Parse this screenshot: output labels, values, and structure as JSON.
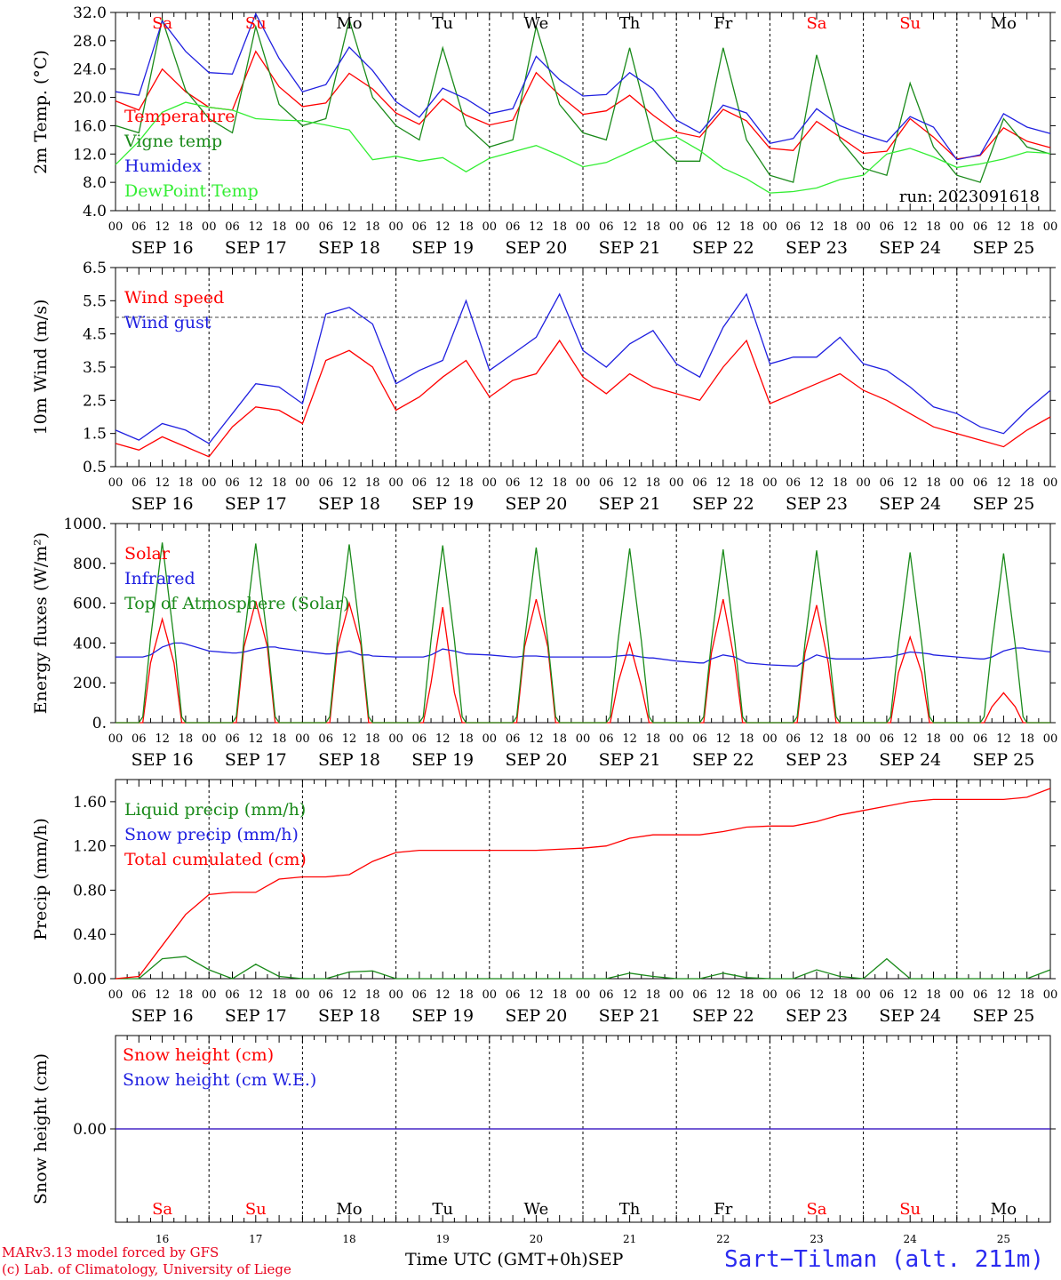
{
  "chart_data": [
    {
      "type": "line",
      "ylabel": "2m Temp. (°C)",
      "ylim": [
        4,
        32
      ],
      "yticks": [
        "32.0",
        "28.0",
        "24.0",
        "20.0",
        "16.0",
        "12.0",
        "8.0",
        "4.0"
      ],
      "dashed_levels": [],
      "run_label": "run: 2023091618",
      "x_hours": [
        0,
        6,
        12,
        18,
        24,
        30,
        36,
        42,
        48,
        54,
        60,
        66,
        72,
        78,
        84,
        90,
        96,
        102,
        108,
        114,
        120,
        126,
        132,
        138,
        144,
        150,
        156,
        162,
        168,
        174,
        180,
        186,
        192,
        198,
        204,
        210,
        216,
        222,
        228,
        234,
        240
      ],
      "series": [
        {
          "name": "Temperature",
          "color": "#ff0000",
          "values": [
            19.5,
            18.2,
            24,
            20.8,
            18.6,
            18.2,
            26.5,
            21.5,
            18.7,
            19.2,
            23.4,
            21.2,
            17.8,
            16.2,
            19.8,
            17.5,
            16.1,
            16.8,
            23.5,
            20.3,
            17.6,
            18.1,
            20.3,
            17.5,
            15.1,
            14.4,
            18.3,
            16.7,
            12.8,
            12.5,
            16.6,
            14.4,
            12.1,
            12.4,
            17,
            14.4,
            11.3,
            11.8,
            15.7,
            13.8,
            12.9
          ]
        },
        {
          "name": "Vigne temp",
          "color": "#1a8a1a",
          "values": [
            16,
            15,
            31,
            21,
            17,
            15,
            30,
            19,
            16,
            17,
            31,
            20,
            16,
            14,
            27,
            16,
            13,
            14,
            30,
            19,
            15,
            14,
            27,
            14,
            11,
            11,
            27,
            14,
            9,
            8,
            26,
            14,
            10,
            9,
            22,
            13,
            9,
            8,
            17,
            13,
            12
          ]
        },
        {
          "name": "Humidex",
          "color": "#2020e0",
          "values": [
            20.8,
            20.3,
            30.8,
            26.5,
            23.5,
            23.3,
            31.8,
            25.5,
            20.8,
            21.8,
            27.1,
            23.8,
            19.4,
            17.2,
            21.3,
            19.8,
            17.7,
            18.4,
            25.8,
            22.5,
            20.2,
            20.4,
            23.5,
            21.2,
            16.8,
            15,
            18.9,
            17.8,
            13.5,
            14.2,
            18.4,
            16,
            14.7,
            13.7,
            17.3,
            15.8,
            11.2,
            11.9,
            17.7,
            15.8,
            14.9
          ]
        },
        {
          "name": "DewPoint Temp",
          "color": "#33ee33",
          "values": [
            10.5,
            13.8,
            17.9,
            19.3,
            18.6,
            18.2,
            17,
            16.8,
            16.7,
            16.1,
            15.4,
            11.2,
            11.7,
            11,
            11.5,
            9.5,
            11.4,
            12.3,
            13.2,
            11.8,
            10.2,
            10.8,
            12.3,
            13.8,
            14.4,
            12.5,
            10,
            8.5,
            6.5,
            6.7,
            7.2,
            8.4,
            9,
            12,
            12.8,
            11.6,
            10.1,
            10.6,
            11.3,
            12.3,
            12.1
          ]
        }
      ]
    },
    {
      "type": "line",
      "ylabel": "10m Wind (m/s)",
      "ylim": [
        0.5,
        6.5
      ],
      "yticks": [
        "6.5",
        "5.5",
        "4.5",
        "3.5",
        "2.5",
        "1.5",
        "0.5"
      ],
      "dashed_levels": [
        5
      ],
      "x_hours": [
        0,
        6,
        12,
        18,
        24,
        30,
        36,
        42,
        48,
        54,
        60,
        66,
        72,
        78,
        84,
        90,
        96,
        102,
        108,
        114,
        120,
        126,
        132,
        138,
        144,
        150,
        156,
        162,
        168,
        174,
        180,
        186,
        192,
        198,
        204,
        210,
        216,
        222,
        228,
        234,
        240
      ],
      "series": [
        {
          "name": "Wind speed",
          "color": "#ff0000",
          "values": [
            1.2,
            1,
            1.4,
            1.1,
            0.8,
            1.7,
            2.3,
            2.2,
            1.8,
            3.7,
            4,
            3.5,
            2.2,
            2.6,
            3.2,
            3.7,
            2.6,
            3.1,
            3.3,
            4.3,
            3.2,
            2.7,
            3.3,
            2.9,
            2.7,
            2.5,
            3.5,
            4.3,
            2.4,
            2.7,
            3,
            3.3,
            2.8,
            2.5,
            2.1,
            1.7,
            1.5,
            1.3,
            1.1,
            1.6,
            2
          ]
        },
        {
          "name": "Wind gust",
          "color": "#2020e0",
          "values": [
            1.6,
            1.3,
            1.8,
            1.6,
            1.2,
            2.1,
            3,
            2.9,
            2.4,
            5.1,
            5.3,
            4.8,
            3,
            3.4,
            3.7,
            5.5,
            3.4,
            3.9,
            4.4,
            5.7,
            4,
            3.5,
            4.2,
            4.6,
            3.6,
            3.2,
            4.7,
            5.7,
            3.6,
            3.8,
            3.8,
            4.4,
            3.6,
            3.4,
            2.9,
            2.3,
            2.1,
            1.7,
            1.5,
            2.2,
            2.8
          ]
        }
      ]
    },
    {
      "type": "line",
      "ylabel": "Energy fluxes (W/m²)",
      "ylim": [
        0,
        1000
      ],
      "yticks": [
        "1000.",
        "800.",
        "600.",
        "400.",
        "200.",
        "0."
      ],
      "dashed_levels": [],
      "x_hours": [
        0,
        6,
        7,
        9,
        12,
        15,
        17,
        18,
        24,
        30,
        31,
        33,
        36,
        39,
        41,
        42,
        48,
        54,
        55,
        57,
        60,
        63,
        65,
        66,
        72,
        78,
        79,
        81,
        84,
        87,
        89,
        90,
        96,
        102,
        103,
        105,
        108,
        111,
        113,
        114,
        120,
        126,
        127,
        129,
        132,
        135,
        137,
        138,
        144,
        150,
        151,
        153,
        156,
        159,
        161,
        162,
        168,
        174,
        175,
        177,
        180,
        183,
        185,
        186,
        192,
        198,
        199,
        201,
        204,
        207,
        209,
        210,
        216,
        222,
        223,
        225,
        228,
        231,
        233,
        234,
        240
      ],
      "series": [
        {
          "name": "Solar",
          "color": "#ff0000",
          "values": [
            0,
            0,
            0,
            300,
            520,
            300,
            0,
            0,
            0,
            0,
            0,
            380,
            610,
            380,
            0,
            0,
            0,
            0,
            0,
            380,
            600,
            390,
            0,
            0,
            0,
            0,
            0,
            200,
            580,
            150,
            0,
            0,
            0,
            0,
            0,
            380,
            620,
            380,
            0,
            0,
            0,
            0,
            0,
            200,
            400,
            180,
            0,
            0,
            0,
            0,
            0,
            350,
            620,
            300,
            0,
            0,
            0,
            0,
            0,
            350,
            590,
            300,
            0,
            0,
            0,
            0,
            0,
            250,
            430,
            250,
            0,
            0,
            0,
            0,
            0,
            80,
            150,
            80,
            0,
            0,
            0
          ]
        },
        {
          "name": "Infrared",
          "color": "#2020e0",
          "values": [
            330,
            330,
            330,
            340,
            380,
            400,
            400,
            395,
            360,
            350,
            350,
            355,
            370,
            380,
            380,
            375,
            360,
            345,
            345,
            350,
            360,
            340,
            340,
            335,
            330,
            330,
            330,
            340,
            370,
            360,
            350,
            345,
            340,
            330,
            330,
            335,
            335,
            330,
            330,
            330,
            330,
            330,
            330,
            335,
            340,
            330,
            325,
            325,
            310,
            300,
            300,
            320,
            340,
            330,
            310,
            300,
            290,
            285,
            285,
            310,
            340,
            325,
            320,
            320,
            320,
            330,
            330,
            340,
            355,
            350,
            345,
            340,
            330,
            320,
            320,
            330,
            360,
            375,
            375,
            370,
            355
          ]
        },
        {
          "name": "Top of Atmosphere (Solar)",
          "color": "#1a8a1a",
          "values": [
            0,
            0,
            30,
            420,
            905,
            420,
            30,
            0,
            0,
            0,
            30,
            420,
            900,
            420,
            30,
            0,
            0,
            0,
            30,
            420,
            895,
            420,
            30,
            0,
            0,
            0,
            30,
            415,
            890,
            415,
            30,
            0,
            0,
            0,
            30,
            410,
            880,
            410,
            30,
            0,
            0,
            0,
            30,
            410,
            875,
            410,
            30,
            0,
            0,
            0,
            30,
            405,
            870,
            405,
            30,
            0,
            0,
            0,
            30,
            400,
            865,
            400,
            30,
            0,
            0,
            0,
            30,
            395,
            855,
            395,
            30,
            0,
            0,
            0,
            30,
            390,
            850,
            390,
            30,
            0,
            0
          ]
        }
      ]
    },
    {
      "type": "line",
      "ylabel": "Precip (mm/h)",
      "ylim": [
        0,
        1.8
      ],
      "yticks": [
        "1.60",
        "1.20",
        "0.80",
        "0.40",
        "0.00"
      ],
      "dashed_levels": [],
      "x_hours": [
        0,
        6,
        12,
        18,
        24,
        30,
        36,
        42,
        48,
        54,
        60,
        66,
        72,
        78,
        84,
        90,
        96,
        102,
        108,
        114,
        120,
        126,
        132,
        138,
        144,
        150,
        156,
        162,
        168,
        174,
        180,
        186,
        192,
        198,
        204,
        210,
        216,
        222,
        228,
        234,
        240
      ],
      "series": [
        {
          "name": "Liquid precip (mm/h)",
          "color": "#1a8a1a",
          "values": [
            0,
            0,
            0.18,
            0.2,
            0.08,
            0,
            0.13,
            0.02,
            0,
            0,
            0.06,
            0.07,
            0,
            0,
            0,
            0,
            0,
            0,
            0,
            0,
            0,
            0,
            0.05,
            0.02,
            0,
            0,
            0.05,
            0.01,
            0,
            0,
            0.08,
            0.02,
            0,
            0.18,
            0,
            0,
            0,
            0,
            0,
            0,
            0.08
          ]
        },
        {
          "name": "Snow precip (mm/h)",
          "color": "#2020e0",
          "values": []
        },
        {
          "name": "Total cumulated (cm)",
          "color": "#ff0000",
          "values": [
            0,
            0.02,
            0.3,
            0.58,
            0.76,
            0.78,
            0.78,
            0.9,
            0.92,
            0.92,
            0.94,
            1.06,
            1.14,
            1.16,
            1.16,
            1.16,
            1.16,
            1.16,
            1.16,
            1.17,
            1.18,
            1.2,
            1.27,
            1.3,
            1.3,
            1.3,
            1.33,
            1.37,
            1.38,
            1.38,
            1.42,
            1.48,
            1.52,
            1.56,
            1.6,
            1.62,
            1.62,
            1.62,
            1.62,
            1.64,
            1.72
          ]
        }
      ]
    },
    {
      "type": "line",
      "ylabel": "Snow height (cm)",
      "ylim": [
        -1,
        1
      ],
      "yticks": [
        "0.00"
      ],
      "dashed_levels": [],
      "x_hours": [
        0,
        240
      ],
      "series": [
        {
          "name": "Snow height (cm)",
          "color": "#ff0000",
          "values": [
            0,
            0
          ]
        },
        {
          "name": "Snow height (cm W.E.)",
          "color": "#2020e0",
          "values": [
            0,
            0
          ]
        }
      ]
    }
  ],
  "x_tick_hours": [
    "00",
    "06",
    "12",
    "18"
  ],
  "x_end_hour": "00",
  "dates": [
    "SEP 16",
    "SEP 17",
    "SEP 18",
    "SEP 19",
    "SEP 20",
    "SEP 21",
    "SEP 22",
    "SEP 23",
    "SEP 24",
    "SEP 25"
  ],
  "weekdays": [
    "Sa",
    "Su",
    "Mo",
    "Tu",
    "We",
    "Th",
    "Fr",
    "Sa",
    "Su",
    "Mo"
  ],
  "weekday_colors": [
    "#ff0000",
    "#ff0000",
    "#000000",
    "#000000",
    "#000000",
    "#000000",
    "#000000",
    "#ff0000",
    "#ff0000",
    "#000000"
  ],
  "day_numbers": [
    "16",
    "17",
    "18",
    "19",
    "20",
    "21",
    "22",
    "23",
    "24",
    "25"
  ],
  "month_label": "SEP",
  "xlabel": "Time UTC (GMT+0h)",
  "credits": [
    "MARv3.13 model forced by GFS",
    "(c) Lab. of Climatology, University of Liege"
  ],
  "station": "Sart−Tilman (alt. 211m)"
}
